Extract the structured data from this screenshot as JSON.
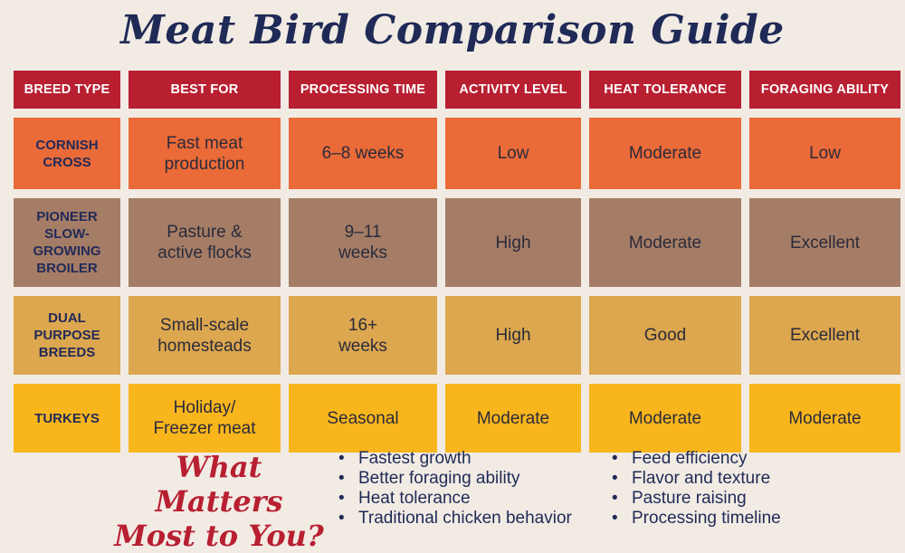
{
  "title": "Meat Bird Comparison Guide",
  "headers": [
    "BREED TYPE",
    "BEST FOR",
    "PROCESSING TIME",
    "ACTIVITY LEVEL",
    "HEAT TOLERANCE",
    "FORAGING ABILITY"
  ],
  "rows": [
    {
      "cells": [
        "CORNISH\nCROSS",
        "Fast meat\nproduction",
        "6–8 weeks",
        "Low",
        "Moderate",
        "Low"
      ],
      "color": "#ea6a38"
    },
    {
      "cells": [
        "PIONEER\nSLOW-\nGROWING\nBROILER",
        "Pasture &\nactive flocks",
        "9–11\nweeks",
        "High",
        "Moderate",
        "Excellent"
      ],
      "color": "#a57d66"
    },
    {
      "cells": [
        "DUAL\nPURPOSE\nBREEDS",
        "Small-scale\nhomesteads",
        "16+\nweeks",
        "High",
        "Good",
        "Excellent"
      ],
      "color": "#dca74e"
    },
    {
      "cells": [
        "TURKEYS",
        "Holiday/\nFreezer meat",
        "Seasonal",
        "Moderate",
        "Moderate",
        "Moderate"
      ],
      "color": "#f9b61c"
    }
  ],
  "matters": {
    "line1": "What Matters",
    "line2": "Most to You?"
  },
  "bullets_left": [
    "Fastest growth",
    "Better foraging ability",
    "Heat tolerance",
    "Traditional chicken behavior"
  ],
  "bullets_right": [
    "Feed efficiency",
    "Flavor and texture",
    "Pasture raising",
    "Processing timeline"
  ],
  "colors": {
    "background": "#f1ebe4",
    "header": "#b81f31",
    "title": "#1f2a56"
  }
}
